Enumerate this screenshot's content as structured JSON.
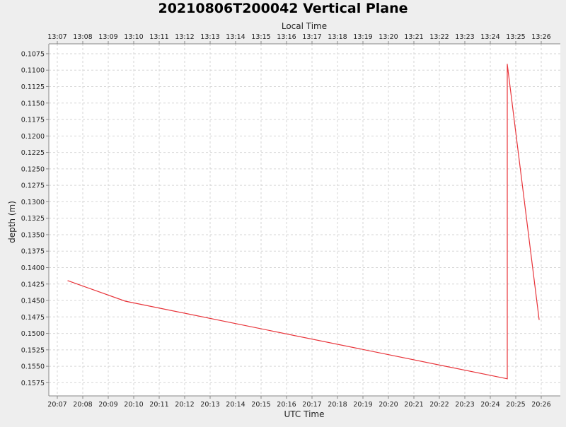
{
  "chart_data": {
    "type": "line",
    "title": "20210806T200042 Vertical Plane",
    "xlabel": "UTC Time",
    "x2label": "Local Time",
    "ylabel": "depth (m)",
    "y_inverted": true,
    "ylim": [
      0.106,
      0.1595
    ],
    "xlim": [
      "20:06:40",
      "20:26:45"
    ],
    "x_ticks": [
      "20:07",
      "20:08",
      "20:09",
      "20:10",
      "20:11",
      "20:12",
      "20:13",
      "20:14",
      "20:15",
      "20:16",
      "20:17",
      "20:18",
      "20:19",
      "20:20",
      "20:21",
      "20:22",
      "20:23",
      "20:24",
      "20:25",
      "20:26"
    ],
    "x2_ticks": [
      "13:07",
      "13:08",
      "13:09",
      "13:10",
      "13:11",
      "13:12",
      "13:13",
      "13:14",
      "13:15",
      "13:16",
      "13:17",
      "13:18",
      "13:19",
      "13:20",
      "13:21",
      "13:22",
      "13:23",
      "13:24",
      "13:25",
      "13:26"
    ],
    "y_ticks": [
      "0.1075",
      "0.1100",
      "0.1125",
      "0.1150",
      "0.1175",
      "0.1200",
      "0.1225",
      "0.1250",
      "0.1275",
      "0.1300",
      "0.1325",
      "0.1350",
      "0.1375",
      "0.1400",
      "0.1425",
      "0.1450",
      "0.1475",
      "0.1500",
      "0.1525",
      "0.1550",
      "0.1575"
    ],
    "grid": true,
    "series": [
      {
        "color": "#e8343a",
        "points": [
          {
            "x": "20:07:25",
            "y": 0.142
          },
          {
            "x": "20:09:40",
            "y": 0.1451
          },
          {
            "x": "20:24:40",
            "y": 0.1569
          },
          {
            "x": "20:24:40",
            "y": 0.1091
          },
          {
            "x": "20:25:55",
            "y": 0.1479
          }
        ]
      }
    ]
  }
}
